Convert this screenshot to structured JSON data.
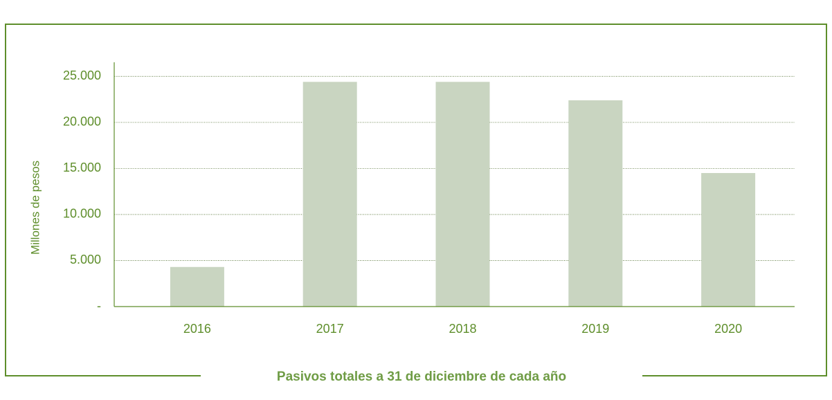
{
  "chart_data": {
    "type": "bar",
    "title": "Pasivos totales a 31 de diciembre de cada año",
    "y_label": "Millones de pesos",
    "categories": [
      "2016",
      "2017",
      "2018",
      "2019",
      "2020"
    ],
    "values": [
      4300,
      24400,
      24400,
      22400,
      14500
    ],
    "color": "#c9d5c1",
    "ylim": [
      0,
      26000
    ],
    "yticks": [
      {
        "value": 0,
        "label": "-"
      },
      {
        "value": 5000,
        "label": "5.000"
      },
      {
        "value": 10000,
        "label": "10.000"
      },
      {
        "value": 15000,
        "label": "15.000"
      },
      {
        "value": 20000,
        "label": "20.000"
      },
      {
        "value": 25000,
        "label": "25.000"
      }
    ],
    "grid": true
  }
}
